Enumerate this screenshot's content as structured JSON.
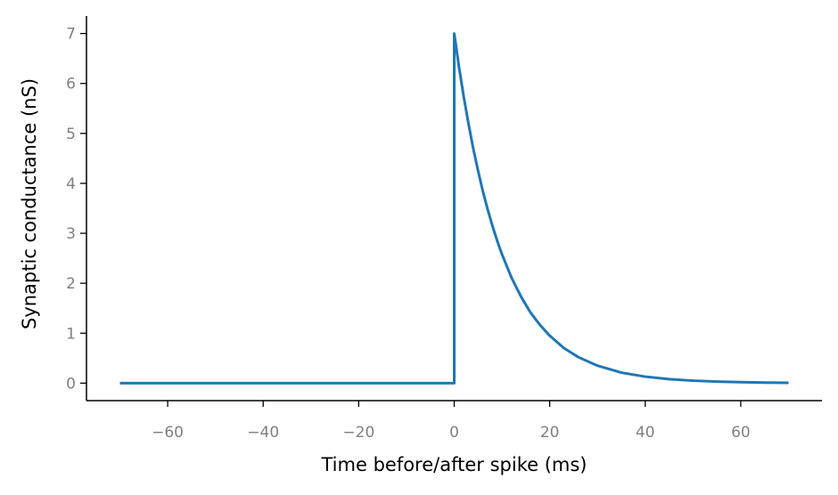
{
  "chart_data": {
    "type": "line",
    "title": "",
    "xlabel": "Time before/after spike (ms)",
    "ylabel": "Synaptic conductance (nS)",
    "xlim": [
      -77,
      77
    ],
    "ylim": [
      -0.35,
      7.35
    ],
    "xticks": [
      -60,
      -40,
      -20,
      0,
      20,
      40,
      60
    ],
    "xtick_labels": [
      "−60",
      "−40",
      "−20",
      "0",
      "20",
      "40",
      "60"
    ],
    "yticks": [
      0,
      1,
      2,
      3,
      4,
      5,
      6,
      7
    ],
    "ytick_labels": [
      "0",
      "1",
      "2",
      "3",
      "4",
      "5",
      "6",
      "7"
    ],
    "grid": false,
    "legend": "none",
    "series": [
      {
        "color": "#1f77b4",
        "x": [
          -70,
          0,
          0,
          1,
          2,
          3,
          4,
          5,
          6,
          7,
          8,
          9,
          10,
          12,
          14,
          16,
          18,
          20,
          23,
          26,
          30,
          35,
          40,
          45,
          50,
          55,
          60,
          65,
          70
        ],
        "y": [
          0,
          0,
          7,
          6.33,
          5.73,
          5.19,
          4.69,
          4.25,
          3.84,
          3.48,
          3.15,
          2.85,
          2.58,
          2.11,
          1.73,
          1.41,
          1.16,
          0.95,
          0.7,
          0.52,
          0.35,
          0.21,
          0.13,
          0.08,
          0.05,
          0.03,
          0.02,
          0.01,
          0.006
        ]
      }
    ]
  }
}
